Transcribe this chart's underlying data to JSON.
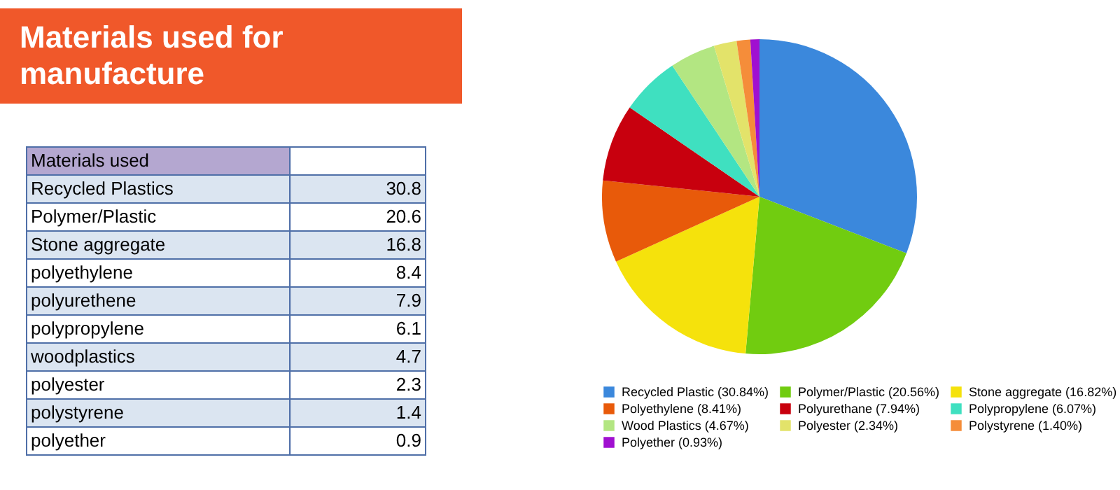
{
  "chart_data": [
    {
      "type": "other",
      "title": "Materials used for manufacture",
      "subtitle": "Materials used",
      "categories": [
        "Recycled Plastics",
        "Polymer/Plastic",
        "Stone aggregate",
        "polyethylene",
        "polyurethene",
        "polypropylene",
        "woodplastics",
        "polyester",
        "polystyrene",
        "polyether"
      ],
      "values": [
        30.8,
        20.6,
        16.8,
        8.4,
        7.9,
        6.1,
        4.7,
        2.3,
        1.4,
        0.9
      ],
      "data_labels": true
    },
    {
      "type": "pie",
      "legend": "bottom",
      "categories": [
        "Recycled Plastic (30.84%)",
        "Polymer/Plastic (20.56%)",
        "Stone aggregate (16.82%)",
        "Polyethylene (8.41%)",
        "Polyurethane (7.94%)",
        "Polypropylene (6.07%)",
        "Wood Plastics (4.67%)",
        "Polyester (2.34%)",
        "Polystyrene (1.40%)",
        "Polyether (0.93%)"
      ],
      "values": [
        30.84,
        20.56,
        16.82,
        8.41,
        7.94,
        6.07,
        4.67,
        2.34,
        1.4,
        0.93
      ],
      "colors": [
        "#3b88dc",
        "#71cc10",
        "#f5e20c",
        "#e85a0a",
        "#c8000e",
        "#3fe0c0",
        "#b3e682",
        "#e3e36a",
        "#f58d3a",
        "#a010d0"
      ]
    }
  ]
}
